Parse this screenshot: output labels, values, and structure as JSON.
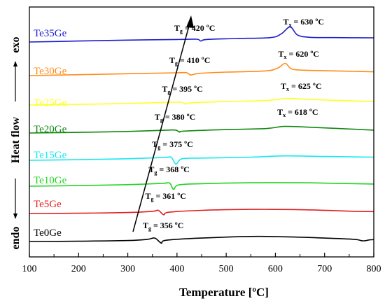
{
  "chart_data": {
    "type": "line",
    "xlabel": "Temperature [ºC]",
    "ylabel": {
      "left": "endo",
      "middle": "Heat flow",
      "right": "exo"
    },
    "xlim": [
      100,
      800
    ],
    "x_ticks": [
      "100",
      "200",
      "300",
      "400",
      "500",
      "600",
      "700",
      "800"
    ],
    "grid": false,
    "series": [
      {
        "name": "Te0Ge",
        "color": "#000000",
        "annotations": [
          {
            "label": "Tg",
            "value": "= 356 ºC",
            "x": 356
          }
        ],
        "points": [
          [
            100,
            0.0
          ],
          [
            200,
            0.05
          ],
          [
            300,
            0.15
          ],
          [
            340,
            0.35
          ],
          [
            355,
            0.55
          ],
          [
            368,
            -0.25
          ],
          [
            378,
            0.2
          ],
          [
            450,
            0.55
          ],
          [
            550,
            0.8
          ],
          [
            620,
            0.75
          ],
          [
            700,
            0.55
          ],
          [
            760,
            0.35
          ],
          [
            778,
            0.1
          ],
          [
            790,
            0.25
          ],
          [
            800,
            0.3
          ]
        ]
      },
      {
        "name": "Te5Ge",
        "color": "#e02020",
        "annotations": [
          {
            "label": "Tg",
            "value": "= 361 ºC",
            "x": 361
          }
        ],
        "points": [
          [
            100,
            0.0
          ],
          [
            200,
            0.05
          ],
          [
            300,
            0.15
          ],
          [
            350,
            0.35
          ],
          [
            362,
            0.5
          ],
          [
            373,
            -0.2
          ],
          [
            383,
            0.2
          ],
          [
            450,
            0.5
          ],
          [
            550,
            0.65
          ],
          [
            650,
            0.6
          ],
          [
            720,
            0.45
          ],
          [
            760,
            0.35
          ],
          [
            800,
            0.3
          ]
        ]
      },
      {
        "name": "Te10Ge",
        "color": "#22d422",
        "annotations": [
          {
            "label": "Tg",
            "value": "= 368 ºC",
            "x": 368
          }
        ],
        "points": [
          [
            100,
            0.0
          ],
          [
            200,
            0.1
          ],
          [
            300,
            0.25
          ],
          [
            370,
            0.45
          ],
          [
            385,
            0.5
          ],
          [
            393,
            -0.5
          ],
          [
            403,
            0.2
          ],
          [
            450,
            0.4
          ],
          [
            550,
            0.55
          ],
          [
            650,
            0.55
          ],
          [
            720,
            0.45
          ],
          [
            800,
            0.35
          ]
        ]
      },
      {
        "name": "Te15Ge",
        "color": "#18e8f0",
        "annotations": [
          {
            "label": "Tg",
            "value": "= 375 ºC",
            "x": 375
          }
        ],
        "points": [
          [
            100,
            0.0
          ],
          [
            200,
            0.1
          ],
          [
            300,
            0.25
          ],
          [
            375,
            0.45
          ],
          [
            388,
            0.5
          ],
          [
            398,
            -0.6
          ],
          [
            410,
            0.25
          ],
          [
            450,
            0.35
          ],
          [
            550,
            0.5
          ],
          [
            620,
            0.7
          ],
          [
            700,
            0.6
          ],
          [
            800,
            0.5
          ]
        ]
      },
      {
        "name": "Te20Ge",
        "color": "#118811",
        "annotations": [
          {
            "label": "Tg",
            "value": "= 380 ºC",
            "x": 380
          },
          {
            "label": "Tx",
            "value": "= 618 ºC",
            "x": 618
          }
        ],
        "points": [
          [
            100,
            0.0
          ],
          [
            200,
            0.1
          ],
          [
            300,
            0.25
          ],
          [
            380,
            0.45
          ],
          [
            398,
            0.45
          ],
          [
            405,
            0.15
          ],
          [
            415,
            0.3
          ],
          [
            500,
            0.55
          ],
          [
            580,
            0.7
          ],
          [
            618,
            1.05
          ],
          [
            660,
            0.95
          ],
          [
            720,
            0.75
          ],
          [
            800,
            0.45
          ]
        ]
      },
      {
        "name": "Te25Ge",
        "color": "#ffff22",
        "annotations": [
          {
            "label": "Tg",
            "value": "= 395 ºC",
            "x": 395
          },
          {
            "label": "Tx",
            "value": "= 625 ºC",
            "x": 625
          }
        ],
        "points": [
          [
            100,
            0.0
          ],
          [
            200,
            0.1
          ],
          [
            300,
            0.25
          ],
          [
            395,
            0.45
          ],
          [
            410,
            0.4
          ],
          [
            418,
            0.15
          ],
          [
            430,
            0.35
          ],
          [
            500,
            0.55
          ],
          [
            580,
            0.7
          ],
          [
            625,
            1.05
          ],
          [
            665,
            0.9
          ],
          [
            720,
            0.75
          ],
          [
            800,
            0.55
          ]
        ]
      },
      {
        "name": "Te30Ge",
        "color": "#ff8c1a",
        "annotations": [
          {
            "label": "Tg",
            "value": "= 410 ºC",
            "x": 410
          },
          {
            "label": "Tx",
            "value": "= 620 ºC",
            "x": 620
          }
        ],
        "points": [
          [
            100,
            0.0
          ],
          [
            200,
            0.15
          ],
          [
            300,
            0.3
          ],
          [
            400,
            0.45
          ],
          [
            420,
            0.45
          ],
          [
            428,
            0.1
          ],
          [
            445,
            0.35
          ],
          [
            500,
            0.55
          ],
          [
            580,
            0.75
          ],
          [
            605,
            1.2
          ],
          [
            620,
            1.95
          ],
          [
            633,
            1.05
          ],
          [
            660,
            0.85
          ],
          [
            720,
            0.75
          ],
          [
            800,
            0.6
          ]
        ]
      },
      {
        "name": "Te35Ge",
        "color": "#1c1ccc",
        "annotations": [
          {
            "label": "Tg",
            "value": "= 420 ºC",
            "x": 420
          },
          {
            "label": "Tx",
            "value": "= 630 ºC",
            "x": 630
          }
        ],
        "points": [
          [
            100,
            0.0
          ],
          [
            200,
            0.15
          ],
          [
            300,
            0.3
          ],
          [
            400,
            0.4
          ],
          [
            440,
            0.45
          ],
          [
            448,
            0.15
          ],
          [
            460,
            0.4
          ],
          [
            520,
            0.55
          ],
          [
            590,
            0.7
          ],
          [
            612,
            1.3
          ],
          [
            630,
            2.4
          ],
          [
            645,
            1.1
          ],
          [
            670,
            0.75
          ],
          [
            720,
            0.7
          ],
          [
            800,
            0.65
          ]
        ]
      }
    ]
  }
}
